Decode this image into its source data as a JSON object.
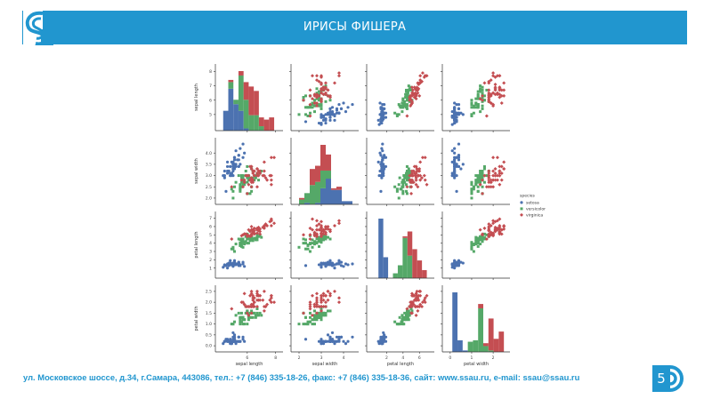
{
  "header": {
    "title": "ИРИСЫ ФИШЕРА"
  },
  "footer": {
    "address": "ул. Московское шоссе, д.34, г.Самара, 443086, тел.: +7 (846) 335-18-26, факс: +7 (846) 335-18-36, сайт: www.ssau.ru, e-mail: ssau@ssau.ru",
    "page_number": "5"
  },
  "colors": {
    "brand": "#2196cf",
    "setosa": "#4c72b0",
    "versicolor": "#55a868",
    "virginica": "#c44e52"
  },
  "icons": {
    "logo": "ssau-logo-icon",
    "page_badge": "ssau-arc-icon"
  },
  "chart_data": {
    "type": "scatter",
    "title": "",
    "subtitle": "pairplot (scatter matrix with stacked histograms on diagonal)",
    "variables": [
      "sepal_length",
      "sepal_width",
      "petal_length",
      "petal_width"
    ],
    "axis_labels": [
      "sepal length",
      "sepal width",
      "petal length",
      "petal width"
    ],
    "ranges": {
      "sepal_length": [
        4.0,
        8.4
      ],
      "sepal_width": [
        1.8,
        4.6
      ],
      "petal_length": [
        0.0,
        7.6
      ],
      "petal_width": [
        -0.2,
        2.7
      ]
    },
    "x_ticks": {
      "sepal_length": [
        "6",
        "8"
      ],
      "sepal_width": [
        "2",
        "3",
        "4"
      ],
      "petal_length": [
        "2",
        "4",
        "6"
      ],
      "petal_width": [
        "0",
        "1",
        "2"
      ]
    },
    "y_ticks": {
      "sepal_length": [
        "5",
        "6",
        "7",
        "8"
      ],
      "sepal_width": [
        "2.0",
        "2.5",
        "3.0",
        "3.5",
        "4.0"
      ],
      "petal_length": [
        "1",
        "2",
        "3",
        "4",
        "5",
        "6",
        "7"
      ],
      "petal_width": [
        "0.0",
        "0.5",
        "1.0",
        "1.5",
        "2.0",
        "2.5"
      ]
    },
    "hist_bins": 10,
    "grid": false,
    "legend": {
      "title": "species",
      "placement": "right",
      "entries": [
        "setosa",
        "versicolor",
        "virginica"
      ]
    },
    "series": [
      {
        "name": "setosa",
        "points": [
          [
            5.1,
            3.5,
            1.4,
            0.2
          ],
          [
            4.9,
            3.0,
            1.4,
            0.2
          ],
          [
            4.7,
            3.2,
            1.3,
            0.2
          ],
          [
            4.6,
            3.1,
            1.5,
            0.2
          ],
          [
            5.0,
            3.6,
            1.4,
            0.2
          ],
          [
            5.4,
            3.9,
            1.7,
            0.4
          ],
          [
            4.6,
            3.4,
            1.4,
            0.3
          ],
          [
            5.0,
            3.4,
            1.5,
            0.2
          ],
          [
            4.4,
            2.9,
            1.4,
            0.2
          ],
          [
            4.9,
            3.1,
            1.5,
            0.1
          ],
          [
            5.4,
            3.7,
            1.5,
            0.2
          ],
          [
            4.8,
            3.4,
            1.6,
            0.2
          ],
          [
            4.8,
            3.0,
            1.4,
            0.1
          ],
          [
            4.3,
            3.0,
            1.1,
            0.1
          ],
          [
            5.8,
            4.0,
            1.2,
            0.2
          ],
          [
            5.7,
            4.4,
            1.5,
            0.4
          ],
          [
            5.4,
            3.9,
            1.3,
            0.4
          ],
          [
            5.1,
            3.5,
            1.4,
            0.3
          ],
          [
            5.7,
            3.8,
            1.7,
            0.3
          ],
          [
            5.1,
            3.8,
            1.5,
            0.3
          ],
          [
            5.4,
            3.4,
            1.7,
            0.2
          ],
          [
            5.1,
            3.7,
            1.5,
            0.4
          ],
          [
            4.6,
            3.6,
            1.0,
            0.2
          ],
          [
            5.1,
            3.3,
            1.7,
            0.5
          ],
          [
            4.8,
            3.4,
            1.9,
            0.2
          ],
          [
            5.0,
            3.0,
            1.6,
            0.2
          ],
          [
            5.0,
            3.4,
            1.6,
            0.4
          ],
          [
            5.2,
            3.5,
            1.5,
            0.2
          ],
          [
            5.2,
            3.4,
            1.4,
            0.2
          ],
          [
            4.7,
            3.2,
            1.6,
            0.2
          ],
          [
            4.8,
            3.1,
            1.6,
            0.2
          ],
          [
            5.4,
            3.4,
            1.5,
            0.4
          ],
          [
            5.2,
            4.1,
            1.5,
            0.1
          ],
          [
            5.5,
            4.2,
            1.4,
            0.2
          ],
          [
            4.9,
            3.1,
            1.5,
            0.2
          ],
          [
            5.0,
            3.2,
            1.2,
            0.2
          ],
          [
            5.5,
            3.5,
            1.3,
            0.2
          ],
          [
            4.9,
            3.6,
            1.4,
            0.1
          ],
          [
            4.4,
            3.0,
            1.3,
            0.2
          ],
          [
            5.1,
            3.4,
            1.5,
            0.2
          ],
          [
            5.0,
            3.5,
            1.3,
            0.3
          ],
          [
            4.5,
            2.3,
            1.3,
            0.3
          ],
          [
            4.4,
            3.2,
            1.3,
            0.2
          ],
          [
            5.0,
            3.5,
            1.6,
            0.6
          ],
          [
            5.1,
            3.8,
            1.9,
            0.4
          ],
          [
            4.8,
            3.0,
            1.4,
            0.3
          ],
          [
            5.1,
            3.8,
            1.6,
            0.2
          ],
          [
            4.6,
            3.2,
            1.4,
            0.2
          ],
          [
            5.3,
            3.7,
            1.5,
            0.2
          ],
          [
            5.0,
            3.3,
            1.4,
            0.2
          ]
        ]
      },
      {
        "name": "versicolor",
        "points": [
          [
            7.0,
            3.2,
            4.7,
            1.4
          ],
          [
            6.4,
            3.2,
            4.5,
            1.5
          ],
          [
            6.9,
            3.1,
            4.9,
            1.5
          ],
          [
            5.5,
            2.3,
            4.0,
            1.3
          ],
          [
            6.5,
            2.8,
            4.6,
            1.5
          ],
          [
            5.7,
            2.8,
            4.5,
            1.3
          ],
          [
            6.3,
            3.3,
            4.7,
            1.6
          ],
          [
            4.9,
            2.4,
            3.3,
            1.0
          ],
          [
            6.6,
            2.9,
            4.6,
            1.3
          ],
          [
            5.2,
            2.7,
            3.9,
            1.4
          ],
          [
            5.0,
            2.0,
            3.5,
            1.0
          ],
          [
            5.9,
            3.0,
            4.2,
            1.5
          ],
          [
            6.0,
            2.2,
            4.0,
            1.0
          ],
          [
            6.1,
            2.9,
            4.7,
            1.4
          ],
          [
            5.6,
            2.9,
            3.6,
            1.3
          ],
          [
            6.7,
            3.1,
            4.4,
            1.4
          ],
          [
            5.6,
            3.0,
            4.5,
            1.5
          ],
          [
            5.8,
            2.7,
            4.1,
            1.0
          ],
          [
            6.2,
            2.2,
            4.5,
            1.5
          ],
          [
            5.6,
            2.5,
            3.9,
            1.1
          ],
          [
            5.9,
            3.2,
            4.8,
            1.8
          ],
          [
            6.1,
            2.8,
            4.0,
            1.3
          ],
          [
            6.3,
            2.5,
            4.9,
            1.5
          ],
          [
            6.1,
            2.8,
            4.7,
            1.2
          ],
          [
            6.4,
            2.9,
            4.3,
            1.3
          ],
          [
            6.6,
            3.0,
            4.4,
            1.4
          ],
          [
            6.8,
            2.8,
            4.8,
            1.4
          ],
          [
            6.7,
            3.0,
            5.0,
            1.7
          ],
          [
            6.0,
            2.9,
            4.5,
            1.5
          ],
          [
            5.7,
            2.6,
            3.5,
            1.0
          ],
          [
            5.5,
            2.4,
            3.8,
            1.1
          ],
          [
            5.5,
            2.4,
            3.7,
            1.0
          ],
          [
            5.8,
            2.7,
            3.9,
            1.2
          ],
          [
            6.0,
            2.7,
            5.1,
            1.6
          ],
          [
            5.4,
            3.0,
            4.5,
            1.5
          ],
          [
            6.0,
            3.4,
            4.5,
            1.6
          ],
          [
            6.7,
            3.1,
            4.7,
            1.5
          ],
          [
            6.3,
            2.3,
            4.4,
            1.3
          ],
          [
            5.6,
            3.0,
            4.1,
            1.3
          ],
          [
            5.5,
            2.5,
            4.0,
            1.3
          ],
          [
            5.5,
            2.6,
            4.4,
            1.2
          ],
          [
            6.1,
            3.0,
            4.6,
            1.4
          ],
          [
            5.8,
            2.6,
            4.0,
            1.2
          ],
          [
            5.0,
            2.3,
            3.3,
            1.0
          ],
          [
            5.6,
            2.7,
            4.2,
            1.3
          ],
          [
            5.7,
            3.0,
            4.2,
            1.2
          ],
          [
            5.7,
            2.9,
            4.2,
            1.3
          ],
          [
            6.2,
            2.9,
            4.3,
            1.3
          ],
          [
            5.1,
            2.5,
            3.0,
            1.1
          ],
          [
            5.7,
            2.8,
            4.1,
            1.3
          ]
        ]
      },
      {
        "name": "virginica",
        "points": [
          [
            6.3,
            3.3,
            6.0,
            2.5
          ],
          [
            5.8,
            2.7,
            5.1,
            1.9
          ],
          [
            7.1,
            3.0,
            5.9,
            2.1
          ],
          [
            6.3,
            2.9,
            5.6,
            1.8
          ],
          [
            6.5,
            3.0,
            5.8,
            2.2
          ],
          [
            7.6,
            3.0,
            6.6,
            2.1
          ],
          [
            4.9,
            2.5,
            4.5,
            1.7
          ],
          [
            7.3,
            2.9,
            6.3,
            1.8
          ],
          [
            6.7,
            2.5,
            5.8,
            1.8
          ],
          [
            7.2,
            3.6,
            6.1,
            2.5
          ],
          [
            6.5,
            3.2,
            5.1,
            2.0
          ],
          [
            6.4,
            2.7,
            5.3,
            1.9
          ],
          [
            6.8,
            3.0,
            5.5,
            2.1
          ],
          [
            5.7,
            2.5,
            5.0,
            2.0
          ],
          [
            5.8,
            2.8,
            5.1,
            2.4
          ],
          [
            6.4,
            3.2,
            5.3,
            2.3
          ],
          [
            6.5,
            3.0,
            5.5,
            1.8
          ],
          [
            7.7,
            3.8,
            6.7,
            2.2
          ],
          [
            7.7,
            2.6,
            6.9,
            2.3
          ],
          [
            6.0,
            2.2,
            5.0,
            1.5
          ],
          [
            6.9,
            3.2,
            5.7,
            2.3
          ],
          [
            5.6,
            2.8,
            4.9,
            2.0
          ],
          [
            7.7,
            2.8,
            6.7,
            2.0
          ],
          [
            6.3,
            2.7,
            4.9,
            1.8
          ],
          [
            6.7,
            3.3,
            5.7,
            2.1
          ],
          [
            7.2,
            3.2,
            6.0,
            1.8
          ],
          [
            6.2,
            2.8,
            4.8,
            1.8
          ],
          [
            6.1,
            3.0,
            4.9,
            1.8
          ],
          [
            6.4,
            2.8,
            5.6,
            2.1
          ],
          [
            7.2,
            3.0,
            5.8,
            1.6
          ],
          [
            7.4,
            2.8,
            6.1,
            1.9
          ],
          [
            7.9,
            3.8,
            6.4,
            2.0
          ],
          [
            6.4,
            2.8,
            5.6,
            2.2
          ],
          [
            6.3,
            2.8,
            5.1,
            1.5
          ],
          [
            6.1,
            2.6,
            5.6,
            1.4
          ],
          [
            7.7,
            3.0,
            6.1,
            2.3
          ],
          [
            6.3,
            3.4,
            5.6,
            2.4
          ],
          [
            6.4,
            3.1,
            5.5,
            1.8
          ],
          [
            6.0,
            3.0,
            4.8,
            1.8
          ],
          [
            6.9,
            3.1,
            5.4,
            2.1
          ],
          [
            6.7,
            3.1,
            5.6,
            2.4
          ],
          [
            6.9,
            3.1,
            5.1,
            2.3
          ],
          [
            5.8,
            2.7,
            5.1,
            1.9
          ],
          [
            6.8,
            3.2,
            5.9,
            2.3
          ],
          [
            6.7,
            3.3,
            5.7,
            2.5
          ],
          [
            6.7,
            3.0,
            5.2,
            2.3
          ],
          [
            6.3,
            2.5,
            5.0,
            1.9
          ],
          [
            6.5,
            3.0,
            5.2,
            2.0
          ],
          [
            6.2,
            3.4,
            5.4,
            2.3
          ],
          [
            5.9,
            3.0,
            5.1,
            1.8
          ]
        ]
      }
    ]
  }
}
